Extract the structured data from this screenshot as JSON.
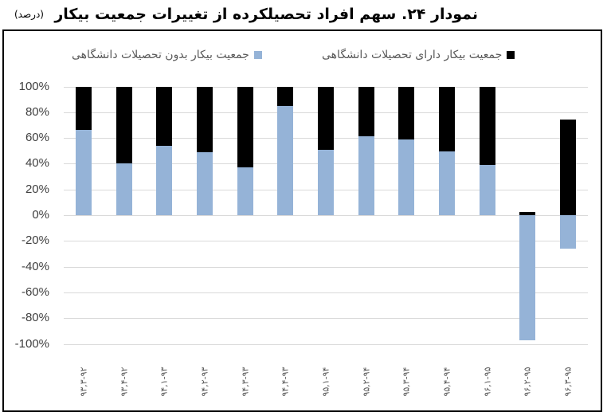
{
  "header": {
    "title": "نمودار ۲۴. سهم افراد تحصیلکرده از تغییرات جمعیت بیکار",
    "unit": "(درصد)"
  },
  "colors": {
    "with_university": "#000000",
    "without_university": "#95b3d7",
    "grid": "#d9d9d9",
    "frame": "#000000"
  },
  "legend": [
    {
      "label": "جمعیت بیکار دارای تحصیلات دانشگاهی",
      "color": "#000000"
    },
    {
      "label": "جمعیت بیکار بدون تحصیلات دانشگاهی",
      "color": "#95b3d7"
    }
  ],
  "chart_data": {
    "type": "bar",
    "stacked": true,
    "title": "نمودار ۲۴. سهم افراد تحصیلکرده از تغییرات جمعیت بیکار",
    "unit_label": "(درصد)",
    "xlabel": "",
    "ylabel": "",
    "ylim": [
      -100,
      100
    ],
    "yticks": [
      "100%",
      "80%",
      "60%",
      "40%",
      "20%",
      "0%",
      "-20%",
      "-40%",
      "-60%",
      "-80%",
      "-100%"
    ],
    "grid": true,
    "legend_position": "top",
    "categories": [
      "۹۳,۳-۹۲",
      "۹۳,۴-۹۲",
      "۹۴,۱-۹۳",
      "۹۴,۲-۹۳",
      "۹۴,۳-۹۳",
      "۹۴,۴-۹۳",
      "۹۵,۱-۹۴",
      "۹۵,۲-۹۴",
      "۹۵,۳-۹۴",
      "۹۵,۴-۹۴",
      "۹۶,۱-۹۵",
      "۹۶,۲-۹۵",
      "۹۶,۳-۹۵"
    ],
    "series": [
      {
        "name": "جمعیت بیکار بدون تحصیلات دانشگاهی",
        "color": "#95b3d7",
        "values": [
          66,
          40,
          54,
          49,
          37,
          85,
          51,
          61,
          59,
          49.5,
          39,
          -97.5,
          -26
        ]
      },
      {
        "name": "جمعیت بیکار دارای تحصیلات دانشگاهی",
        "color": "#000000",
        "values": [
          34,
          60,
          46,
          51,
          63,
          15,
          49,
          39,
          41,
          50.5,
          61,
          2.5,
          74.5
        ]
      }
    ]
  }
}
